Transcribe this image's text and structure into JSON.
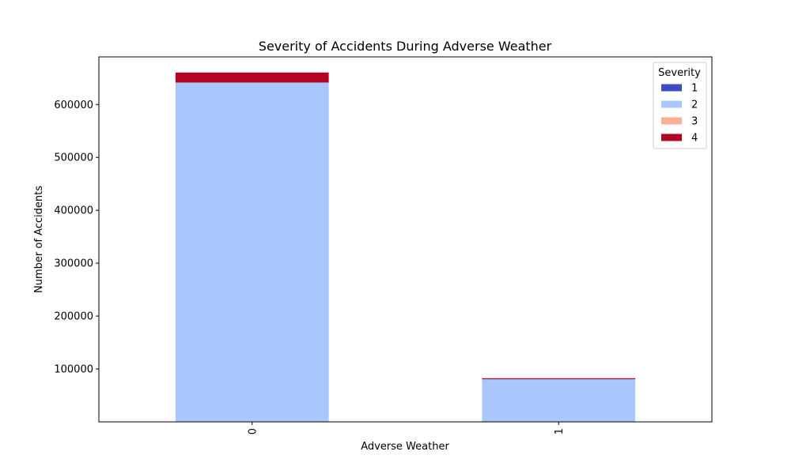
{
  "chart_data": {
    "type": "bar",
    "stacked": true,
    "title": "Severity of Accidents During Adverse Weather",
    "xlabel": "Adverse Weather",
    "ylabel": "Number of Accidents",
    "categories": [
      "0",
      "1"
    ],
    "series": [
      {
        "name": "1",
        "color": "#3b4cc0",
        "values": [
          0,
          0
        ]
      },
      {
        "name": "2",
        "color": "#aac7fd",
        "values": [
          641500,
          80500
        ]
      },
      {
        "name": "3",
        "color": "#f7b093",
        "values": [
          0,
          0
        ]
      },
      {
        "name": "4",
        "color": "#b40426",
        "values": [
          19000,
          2000
        ]
      }
    ],
    "ylim": [
      0,
      690000
    ],
    "yticks": [
      100000,
      200000,
      300000,
      400000,
      500000,
      600000
    ],
    "legend": {
      "title": "Severity",
      "placement": "top-right"
    },
    "grid": false
  }
}
